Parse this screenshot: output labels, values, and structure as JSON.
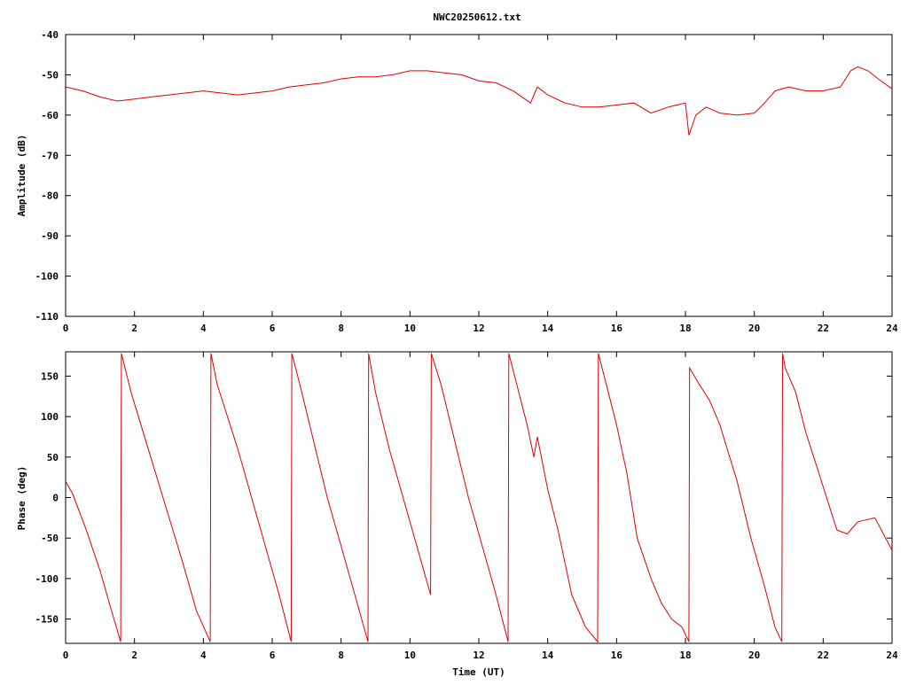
{
  "chart_data": [
    {
      "type": "line",
      "title": "NWC20250612.txt",
      "xlabel": "",
      "ylabel": "Amplitude (dB)",
      "xlim": [
        0,
        24
      ],
      "ylim": [
        -110,
        -40
      ],
      "xticks": [
        "0",
        "2",
        "4",
        "6",
        "8",
        "10",
        "12",
        "14",
        "16",
        "18",
        "20",
        "22",
        "24"
      ],
      "yticks": [
        "-40",
        "-50",
        "-60",
        "-70",
        "-80",
        "-90",
        "-100",
        "-110"
      ],
      "grid": false,
      "line_color": "#e00000",
      "series": [
        {
          "x": [
            0,
            0.5,
            1.0,
            1.5,
            2.0,
            2.5,
            3.0,
            3.5,
            4.0,
            4.5,
            5.0,
            5.5,
            6.0,
            6.5,
            7.0,
            7.5,
            8.0,
            8.5,
            9.0,
            9.5,
            10.0,
            10.5,
            11.0,
            11.5,
            12.0,
            12.5,
            13.0,
            13.5,
            13.7,
            14.0,
            14.5,
            15.0,
            15.5,
            16.0,
            16.5,
            17.0,
            17.5,
            18.0,
            18.1,
            18.3,
            18.6,
            19.0,
            19.5,
            20.0,
            20.3,
            20.6,
            21.0,
            21.5,
            22.0,
            22.5,
            22.8,
            23.0,
            23.3,
            23.6,
            24.0
          ],
          "y": [
            -53,
            -54,
            -55.5,
            -56.5,
            -56,
            -55.5,
            -55,
            -54.5,
            -54,
            -54.5,
            -55,
            -54.5,
            -54,
            -53,
            -52.5,
            -52,
            -51,
            -50.5,
            -50.5,
            -50,
            -49,
            -49,
            -49.5,
            -50,
            -51.5,
            -52,
            -54,
            -57,
            -53,
            -55,
            -57,
            -58,
            -58,
            -57.5,
            -57,
            -59.5,
            -58,
            -57,
            -65,
            -60,
            -58,
            -59.5,
            -60,
            -59.5,
            -57,
            -54,
            -53,
            -54,
            -54,
            -53,
            -49,
            -48,
            -49,
            -51,
            -53.5
          ]
        }
      ]
    },
    {
      "type": "line",
      "title": "",
      "xlabel": "Time (UT)",
      "ylabel": "Phase (deg)",
      "xlim": [
        0,
        24
      ],
      "ylim": [
        -180,
        180
      ],
      "xticks": [
        "0",
        "2",
        "4",
        "6",
        "8",
        "10",
        "12",
        "14",
        "16",
        "18",
        "20",
        "22",
        "24"
      ],
      "yticks": [
        "150",
        "100",
        "50",
        "0",
        "-50",
        "-100",
        "-150"
      ],
      "grid": false,
      "line_color": "#e00000",
      "series": [
        {
          "x": [
            0,
            0.2,
            0.6,
            1.0,
            1.3,
            1.6,
            1.62,
            1.9,
            2.4,
            2.9,
            3.4,
            3.8,
            4.2,
            4.22,
            4.4,
            4.7,
            5.0,
            5.4,
            5.8,
            6.2,
            6.55,
            6.57,
            6.8,
            7.2,
            7.6,
            8.0,
            8.4,
            8.78,
            8.8,
            9.0,
            9.4,
            9.8,
            10.2,
            10.6,
            10.62,
            10.9,
            11.3,
            11.7,
            12.1,
            12.5,
            12.85,
            12.87,
            13.1,
            13.4,
            13.6,
            13.7,
            14.0,
            14.3,
            14.7,
            15.1,
            15.45,
            15.47,
            15.7,
            16.0,
            16.3,
            16.6,
            17.0,
            17.3,
            17.6,
            17.9,
            18.1,
            18.12,
            18.4,
            18.7,
            19.0,
            19.5,
            19.9,
            20.3,
            20.6,
            20.8,
            20.82,
            20.9,
            21.2,
            21.5,
            21.8,
            22.1,
            22.4,
            22.7,
            23.0,
            23.5,
            24.0
          ],
          "y": [
            20,
            5,
            -40,
            -90,
            -135,
            -178,
            178,
            130,
            60,
            -10,
            -80,
            -140,
            -178,
            178,
            140,
            100,
            60,
            0,
            -60,
            -120,
            -178,
            178,
            140,
            70,
            0,
            -60,
            -120,
            -178,
            178,
            130,
            60,
            0,
            -60,
            -120,
            178,
            140,
            70,
            0,
            -60,
            -120,
            -178,
            178,
            140,
            90,
            50,
            75,
            10,
            -40,
            -120,
            -160,
            -178,
            178,
            140,
            90,
            30,
            -50,
            -100,
            -130,
            -150,
            -160,
            -178,
            160,
            140,
            120,
            90,
            20,
            -50,
            -110,
            -160,
            -178,
            178,
            160,
            130,
            80,
            40,
            0,
            -40,
            -45,
            -30,
            -25,
            -65
          ]
        }
      ]
    }
  ]
}
